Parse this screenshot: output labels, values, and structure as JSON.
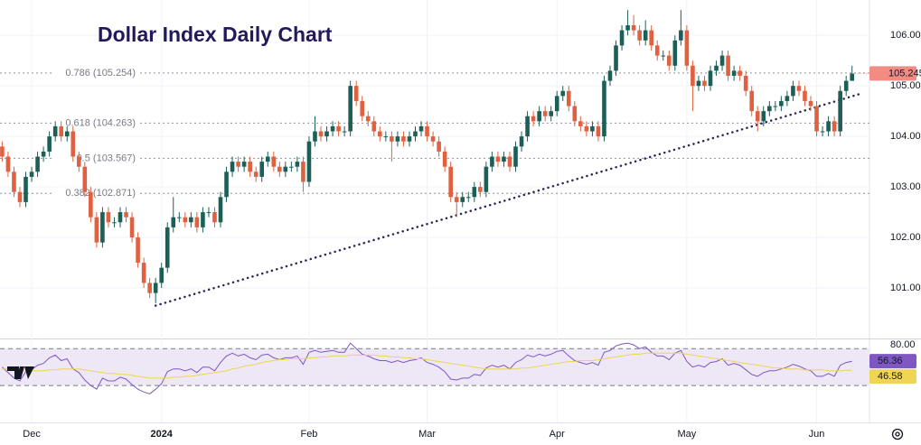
{
  "chart_data": [
    {
      "type": "candlestick",
      "title": "Dollar Index Daily Chart",
      "categories": [
        null,
        null,
        null,
        null,
        null,
        "Dec",
        null,
        null,
        null,
        null,
        null,
        null,
        null,
        null,
        null,
        null,
        null,
        null,
        null,
        null,
        null,
        null,
        null,
        null,
        null,
        null,
        null,
        "2024",
        null,
        null,
        null,
        null,
        null,
        null,
        null,
        null,
        null,
        null,
        null,
        null,
        null,
        null,
        null,
        null,
        null,
        null,
        null,
        null,
        null,
        null,
        null,
        null,
        "Feb",
        null,
        null,
        null,
        null,
        null,
        null,
        null,
        null,
        null,
        null,
        null,
        null,
        null,
        null,
        null,
        null,
        null,
        null,
        null,
        "Mar",
        null,
        null,
        null,
        null,
        null,
        null,
        null,
        null,
        null,
        null,
        null,
        null,
        null,
        null,
        null,
        null,
        null,
        null,
        null,
        null,
        null,
        "Apr",
        null,
        null,
        null,
        null,
        null,
        null,
        null,
        null,
        null,
        null,
        null,
        null,
        null,
        null,
        null,
        null,
        null,
        null,
        null,
        null,
        null,
        "May",
        null,
        null,
        null,
        null,
        null,
        null,
        null,
        null,
        null,
        null,
        null,
        null,
        null,
        null,
        null,
        null,
        null,
        null,
        null,
        null,
        null,
        "Jun",
        null,
        null,
        null,
        null,
        null,
        null
      ],
      "open": [
        103.8,
        103.6,
        103.3,
        102.9,
        102.7,
        103.2,
        103.3,
        103.6,
        103.7,
        104.0,
        104.2,
        104.0,
        104.1,
        103.6,
        103.4,
        102.9,
        102.4,
        101.9,
        102.5,
        102.3,
        102.3,
        102.5,
        102.4,
        102.0,
        101.5,
        101.1,
        100.9,
        101.1,
        101.4,
        102.2,
        102.4,
        102.4,
        102.3,
        102.4,
        102.2,
        102.5,
        102.5,
        102.3,
        102.8,
        103.3,
        103.5,
        103.4,
        103.5,
        103.3,
        103.2,
        103.5,
        103.6,
        103.4,
        103.3,
        103.4,
        103.4,
        103.5,
        103.1,
        103.9,
        104.1,
        104.0,
        104.1,
        104.2,
        104.1,
        104.1,
        105.0,
        104.7,
        104.4,
        104.3,
        104.1,
        104.0,
        104.0,
        103.9,
        104.0,
        103.9,
        104.0,
        104.1,
        104.2,
        104.0,
        103.9,
        103.7,
        103.4,
        102.8,
        102.7,
        102.8,
        102.8,
        103.0,
        102.9,
        103.4,
        103.6,
        103.5,
        103.6,
        103.4,
        103.8,
        104.0,
        104.4,
        104.3,
        104.5,
        104.4,
        104.5,
        104.8,
        104.9,
        104.6,
        104.3,
        104.2,
        104.1,
        104.2,
        104.0,
        105.1,
        105.3,
        105.8,
        106.1,
        106.2,
        106.1,
        105.9,
        106.1,
        105.8,
        105.6,
        105.6,
        105.4,
        105.9,
        106.1,
        105.4,
        105.0,
        105.1,
        105.0,
        105.3,
        105.4,
        105.6,
        105.2,
        105.3,
        105.2,
        104.9,
        104.5,
        104.3,
        104.5,
        104.6,
        104.6,
        104.7,
        104.8,
        105.0,
        104.9,
        104.7,
        104.6,
        104.1,
        104.1,
        104.3,
        104.1,
        104.9,
        105.1
      ],
      "high": [
        103.9,
        103.7,
        103.4,
        103.0,
        103.3,
        103.4,
        103.7,
        103.8,
        104.1,
        104.3,
        104.3,
        104.2,
        104.2,
        103.7,
        103.5,
        103.0,
        102.5,
        102.6,
        102.6,
        102.4,
        102.6,
        102.6,
        102.5,
        102.1,
        101.6,
        101.2,
        101.2,
        101.5,
        102.3,
        102.8,
        102.5,
        102.5,
        102.5,
        102.5,
        102.6,
        102.6,
        102.6,
        102.9,
        103.4,
        103.6,
        103.6,
        103.6,
        103.6,
        103.4,
        103.6,
        103.7,
        103.7,
        103.5,
        103.5,
        103.5,
        103.6,
        103.6,
        104.0,
        104.4,
        104.2,
        104.2,
        104.3,
        104.3,
        104.2,
        105.1,
        105.1,
        104.8,
        104.5,
        104.4,
        104.2,
        104.1,
        104.1,
        104.1,
        104.1,
        104.1,
        104.2,
        104.3,
        104.3,
        104.1,
        104.0,
        103.8,
        103.5,
        102.9,
        102.9,
        102.9,
        103.1,
        103.1,
        103.5,
        103.7,
        103.7,
        103.7,
        103.7,
        103.9,
        104.1,
        104.5,
        104.5,
        104.6,
        104.6,
        104.6,
        104.9,
        105.0,
        105.0,
        104.7,
        104.4,
        104.3,
        104.3,
        104.3,
        105.2,
        105.4,
        105.9,
        106.2,
        106.5,
        106.4,
        106.2,
        106.3,
        106.2,
        105.9,
        105.7,
        105.7,
        106.0,
        106.5,
        106.2,
        105.5,
        105.2,
        105.2,
        105.4,
        105.5,
        105.7,
        105.7,
        105.4,
        105.4,
        105.3,
        105.0,
        104.6,
        104.6,
        104.7,
        104.7,
        104.8,
        104.9,
        105.1,
        105.1,
        105.0,
        104.8,
        104.7,
        104.2,
        104.4,
        104.4,
        105.0,
        105.2,
        105.4
      ],
      "low": [
        103.5,
        103.2,
        102.8,
        102.6,
        102.6,
        103.1,
        103.2,
        103.5,
        103.6,
        103.9,
        103.9,
        103.9,
        103.5,
        103.3,
        102.8,
        102.3,
        101.8,
        101.8,
        102.2,
        102.2,
        102.2,
        102.3,
        101.9,
        101.4,
        101.0,
        100.8,
        100.7,
        101.0,
        101.3,
        102.1,
        102.3,
        102.2,
        102.2,
        102.1,
        102.1,
        102.4,
        102.2,
        102.2,
        102.7,
        103.2,
        103.3,
        103.3,
        103.2,
        103.1,
        103.1,
        103.4,
        103.3,
        103.2,
        103.2,
        103.3,
        103.3,
        102.9,
        103.0,
        103.8,
        103.9,
        103.9,
        104.0,
        104.0,
        104.0,
        104.0,
        104.6,
        104.3,
        104.2,
        104.0,
        103.9,
        103.9,
        103.5,
        103.8,
        103.8,
        103.8,
        103.9,
        104.0,
        103.9,
        103.8,
        103.6,
        103.3,
        102.7,
        102.4,
        102.6,
        102.7,
        102.7,
        102.8,
        102.8,
        103.3,
        103.4,
        103.4,
        103.3,
        103.3,
        103.7,
        103.9,
        104.2,
        104.2,
        104.3,
        104.3,
        104.4,
        104.7,
        104.5,
        104.2,
        104.1,
        104.0,
        104.0,
        103.9,
        103.9,
        105.0,
        105.2,
        105.7,
        106.0,
        106.0,
        105.8,
        105.8,
        105.7,
        105.5,
        105.5,
        105.3,
        105.3,
        105.8,
        105.3,
        104.5,
        104.9,
        104.9,
        104.9,
        105.2,
        105.3,
        105.1,
        105.1,
        105.1,
        104.8,
        104.4,
        104.1,
        104.2,
        104.4,
        104.5,
        104.5,
        104.6,
        104.7,
        104.8,
        104.6,
        104.5,
        104.0,
        104.0,
        104.0,
        104.0,
        104.0,
        104.8,
        105.1
      ],
      "close": [
        103.6,
        103.3,
        102.9,
        102.7,
        103.2,
        103.3,
        103.6,
        103.7,
        104.0,
        104.2,
        104.0,
        104.1,
        103.6,
        103.4,
        102.9,
        102.4,
        101.9,
        102.5,
        102.3,
        102.3,
        102.5,
        102.4,
        102.0,
        101.5,
        101.1,
        100.9,
        101.1,
        101.4,
        102.2,
        102.4,
        102.4,
        102.3,
        102.4,
        102.2,
        102.5,
        102.5,
        102.3,
        102.8,
        103.3,
        103.5,
        103.4,
        103.5,
        103.3,
        103.2,
        103.5,
        103.6,
        103.4,
        103.3,
        103.4,
        103.4,
        103.5,
        103.1,
        103.9,
        104.1,
        104.0,
        104.1,
        104.2,
        104.1,
        104.1,
        105.0,
        104.7,
        104.4,
        104.3,
        104.1,
        104.0,
        104.0,
        103.9,
        104.0,
        103.9,
        104.0,
        104.1,
        104.2,
        104.0,
        103.9,
        103.7,
        103.4,
        102.8,
        102.7,
        102.8,
        102.8,
        103.0,
        102.9,
        103.4,
        103.6,
        103.5,
        103.6,
        103.4,
        103.8,
        104.0,
        104.4,
        104.3,
        104.5,
        104.4,
        104.5,
        104.8,
        104.9,
        104.6,
        104.3,
        104.2,
        104.1,
        104.2,
        104.0,
        105.1,
        105.3,
        105.8,
        106.1,
        106.2,
        106.1,
        105.9,
        106.1,
        105.8,
        105.6,
        105.6,
        105.4,
        105.9,
        106.1,
        105.4,
        105.0,
        105.1,
        105.0,
        105.3,
        105.4,
        105.6,
        105.2,
        105.3,
        105.2,
        104.9,
        104.5,
        104.3,
        104.5,
        104.6,
        104.6,
        104.7,
        104.8,
        105.0,
        104.9,
        104.7,
        104.6,
        104.1,
        104.1,
        104.3,
        104.1,
        104.9,
        105.1,
        105.245
      ],
      "last_label": "105.245",
      "up_color": "#1c5f56",
      "down_color": "#e0603f",
      "ylim": [
        100.0,
        106.7
      ],
      "yticks": [
        {
          "value": 101,
          "label": "101.00"
        },
        {
          "value": 102,
          "label": "102.00"
        },
        {
          "value": 103,
          "label": "103.00"
        },
        {
          "value": 104,
          "label": "104.00"
        },
        {
          "value": 105,
          "label": "105.00"
        },
        {
          "value": 106,
          "label": "106.00"
        }
      ],
      "grid": true,
      "fib_levels": [
        {
          "value": 105.254,
          "label": "0.786 (105.254)"
        },
        {
          "value": 104.263,
          "label": "0.618 (104.263)"
        },
        {
          "value": 103.567,
          "label": "0.5 (103.567)"
        },
        {
          "value": 102.871,
          "label": "0.382 (102.871)"
        }
      ],
      "trendline": {
        "values": [
          100.65,
          104.86
        ],
        "color": "#2b2857"
      }
    },
    {
      "type": "line",
      "series": [
        {
          "color": "#7e57c2",
          "values": [
            50,
            44,
            38,
            35,
            45,
            47,
            52,
            54,
            60,
            63,
            57,
            59,
            48,
            44,
            36,
            30,
            26,
            38,
            35,
            35,
            39,
            37,
            31,
            26,
            23,
            21,
            26,
            32,
            45,
            48,
            48,
            46,
            48,
            44,
            50,
            50,
            46,
            55,
            62,
            65,
            62,
            64,
            60,
            58,
            63,
            64,
            60,
            58,
            60,
            60,
            62,
            53,
            66,
            68,
            66,
            67,
            68,
            66,
            66,
            76,
            70,
            64,
            62,
            59,
            57,
            57,
            55,
            57,
            55,
            57,
            58,
            60,
            55,
            53,
            50,
            45,
            37,
            36,
            38,
            38,
            42,
            41,
            49,
            52,
            50,
            52,
            48,
            55,
            58,
            63,
            61,
            64,
            62,
            64,
            67,
            68,
            62,
            57,
            55,
            53,
            55,
            52,
            66,
            68,
            73,
            75,
            76,
            74,
            70,
            72,
            66,
            62,
            62,
            58,
            65,
            68,
            56,
            50,
            52,
            50,
            55,
            56,
            59,
            52,
            54,
            52,
            47,
            42,
            40,
            44,
            46,
            46,
            48,
            50,
            53,
            51,
            48,
            46,
            40,
            40,
            43,
            40,
            52,
            55,
            56.36
          ]
        },
        {
          "color": "#f0d456",
          "values": [
            48,
            48,
            47,
            46,
            46,
            46,
            46,
            46,
            47,
            47,
            48,
            48,
            48,
            48,
            47,
            46,
            45,
            44,
            43,
            43,
            42,
            42,
            41,
            40,
            39,
            38,
            38,
            38,
            38,
            39,
            39,
            40,
            40,
            41,
            42,
            43,
            44,
            45,
            46,
            48,
            49,
            51,
            52,
            53,
            55,
            56,
            57,
            58,
            58,
            59,
            59,
            59,
            60,
            60,
            61,
            61,
            62,
            62,
            62,
            63,
            63,
            63,
            63,
            63,
            62,
            62,
            61,
            61,
            60,
            60,
            59,
            59,
            58,
            57,
            56,
            55,
            54,
            53,
            52,
            51,
            50,
            49,
            48,
            48,
            48,
            48,
            48,
            48,
            49,
            49,
            50,
            51,
            52,
            53,
            54,
            55,
            56,
            56,
            57,
            57,
            57,
            58,
            59,
            60,
            61,
            62,
            63,
            64,
            64,
            65,
            65,
            65,
            65,
            65,
            65,
            65,
            64,
            63,
            62,
            61,
            60,
            59,
            58,
            57,
            56,
            55,
            54,
            53,
            52,
            51,
            50,
            49,
            49,
            48,
            48,
            48,
            47,
            47,
            47,
            47,
            46,
            46,
            46,
            46.5,
            46.58
          ]
        }
      ],
      "ylim": [
        -10,
        80
      ],
      "yticks": [
        {
          "value": 80,
          "label": "80.00"
        }
      ],
      "bands": [
        30,
        70
      ],
      "band_color": "#ede7f6"
    }
  ]
}
